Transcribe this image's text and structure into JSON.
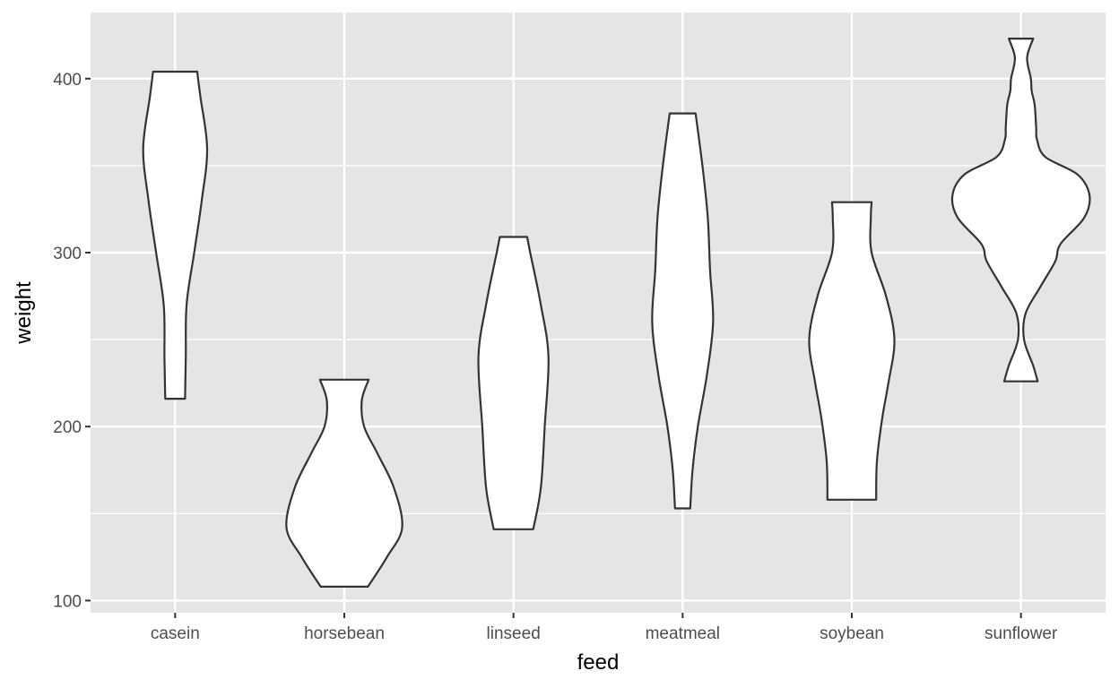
{
  "chart_data": {
    "type": "violin",
    "title": "",
    "xlabel": "feed",
    "ylabel": "weight",
    "categories": [
      "casein",
      "horsebean",
      "linseed",
      "meatmeal",
      "soybean",
      "sunflower"
    ],
    "ylim": [
      93,
      438
    ],
    "y_ticks": [
      100,
      200,
      300,
      400
    ],
    "y_tick_labels": [
      "100",
      "200",
      "300",
      "400"
    ],
    "grid": true,
    "legend": "none",
    "colors": {
      "panel": "#e5e5e5",
      "grid": "#ffffff",
      "violin_fill": "#ffffff",
      "violin_stroke": "#333333",
      "tick_text": "#4d4d4d"
    },
    "series": [
      {
        "category": "casein",
        "min": 216,
        "max": 404,
        "profile": [
          [
            216,
            0.13
          ],
          [
            240,
            0.14
          ],
          [
            270,
            0.15
          ],
          [
            300,
            0.25
          ],
          [
            330,
            0.35
          ],
          [
            360,
            0.42
          ],
          [
            390,
            0.33
          ],
          [
            404,
            0.29
          ]
        ]
      },
      {
        "category": "horsebean",
        "min": 108,
        "max": 227,
        "profile": [
          [
            108,
            0.31
          ],
          [
            125,
            0.56
          ],
          [
            142,
            0.76
          ],
          [
            165,
            0.65
          ],
          [
            185,
            0.43
          ],
          [
            200,
            0.26
          ],
          [
            215,
            0.23
          ],
          [
            227,
            0.32
          ]
        ]
      },
      {
        "category": "linseed",
        "min": 141,
        "max": 309,
        "profile": [
          [
            141,
            0.26
          ],
          [
            165,
            0.36
          ],
          [
            200,
            0.41
          ],
          [
            240,
            0.46
          ],
          [
            270,
            0.36
          ],
          [
            300,
            0.22
          ],
          [
            309,
            0.18
          ]
        ]
      },
      {
        "category": "meatmeal",
        "min": 153,
        "max": 380,
        "profile": [
          [
            153,
            0.1
          ],
          [
            175,
            0.13
          ],
          [
            200,
            0.2
          ],
          [
            230,
            0.32
          ],
          [
            260,
            0.4
          ],
          [
            290,
            0.36
          ],
          [
            320,
            0.33
          ],
          [
            350,
            0.26
          ],
          [
            380,
            0.17
          ]
        ]
      },
      {
        "category": "soybean",
        "min": 158,
        "max": 329,
        "profile": [
          [
            158,
            0.32
          ],
          [
            180,
            0.33
          ],
          [
            205,
            0.4
          ],
          [
            225,
            0.48
          ],
          [
            250,
            0.56
          ],
          [
            275,
            0.45
          ],
          [
            300,
            0.26
          ],
          [
            320,
            0.25
          ],
          [
            329,
            0.26
          ]
        ]
      },
      {
        "category": "sunflower",
        "min": 226,
        "max": 423,
        "profile": [
          [
            226,
            0.22
          ],
          [
            235,
            0.16
          ],
          [
            250,
            0.04
          ],
          [
            265,
            0.06
          ],
          [
            280,
            0.25
          ],
          [
            295,
            0.45
          ],
          [
            305,
            0.52
          ],
          [
            320,
            0.83
          ],
          [
            333,
            0.9
          ],
          [
            345,
            0.74
          ],
          [
            355,
            0.32
          ],
          [
            365,
            0.21
          ],
          [
            372,
            0.2
          ],
          [
            385,
            0.18
          ],
          [
            393,
            0.14
          ],
          [
            400,
            0.13
          ],
          [
            412,
            0.08
          ],
          [
            423,
            0.16
          ]
        ]
      }
    ]
  }
}
